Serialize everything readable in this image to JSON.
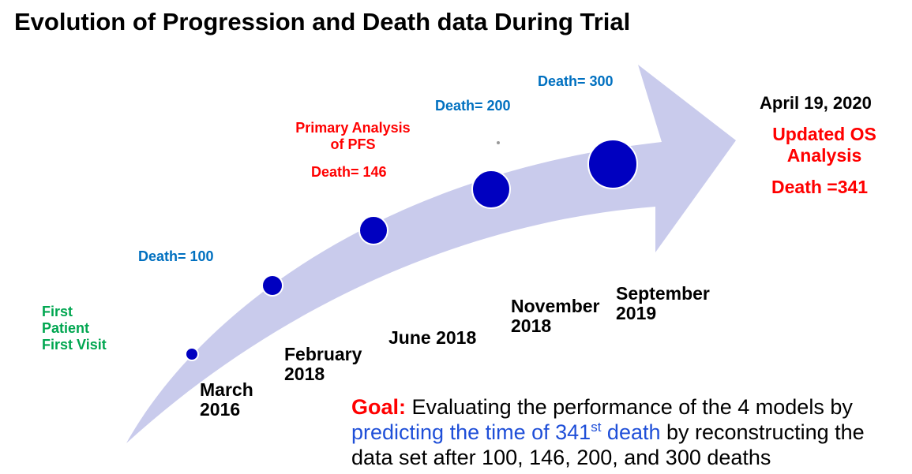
{
  "title": "Evolution of Progression and Death data During Trial",
  "milestones": [
    {
      "death_label": "",
      "event_lines": [
        "First",
        "Patient",
        "First Visit"
      ],
      "date_lines": [
        "March",
        "2016"
      ]
    },
    {
      "death_label": "Death= 100",
      "event_lines": [],
      "date_lines": [
        "February",
        "2018"
      ]
    },
    {
      "death_label": "Death= 146",
      "event_lines": [
        "Primary Analysis",
        "of PFS"
      ],
      "date_lines": [
        "June 2018"
      ]
    },
    {
      "death_label": "Death= 200",
      "event_lines": [],
      "date_lines": [
        "November",
        "2018"
      ]
    },
    {
      "death_label": "Death= 300",
      "event_lines": [],
      "date_lines": [
        "September",
        "2019"
      ]
    }
  ],
  "final": {
    "date": "April 19, 2020",
    "event_lines": [
      "Updated OS",
      "Analysis"
    ],
    "death_label": "Death =341"
  },
  "goal": {
    "key": "Goal:",
    "text_1": " Evaluating the performance of the 4 models by ",
    "highlight_pre": "predicting the time of 341",
    "highlight_sup": "st",
    "highlight_post": " death",
    "text_2": " by reconstructing the data set after 100, 146, 200, and 300 deaths"
  },
  "colors": {
    "arrow_fill": "#c9cbec",
    "dot_fill": "#0000c0",
    "blue_text": "#0070c0",
    "red_text": "#ff0000",
    "green_text": "#00a650"
  }
}
